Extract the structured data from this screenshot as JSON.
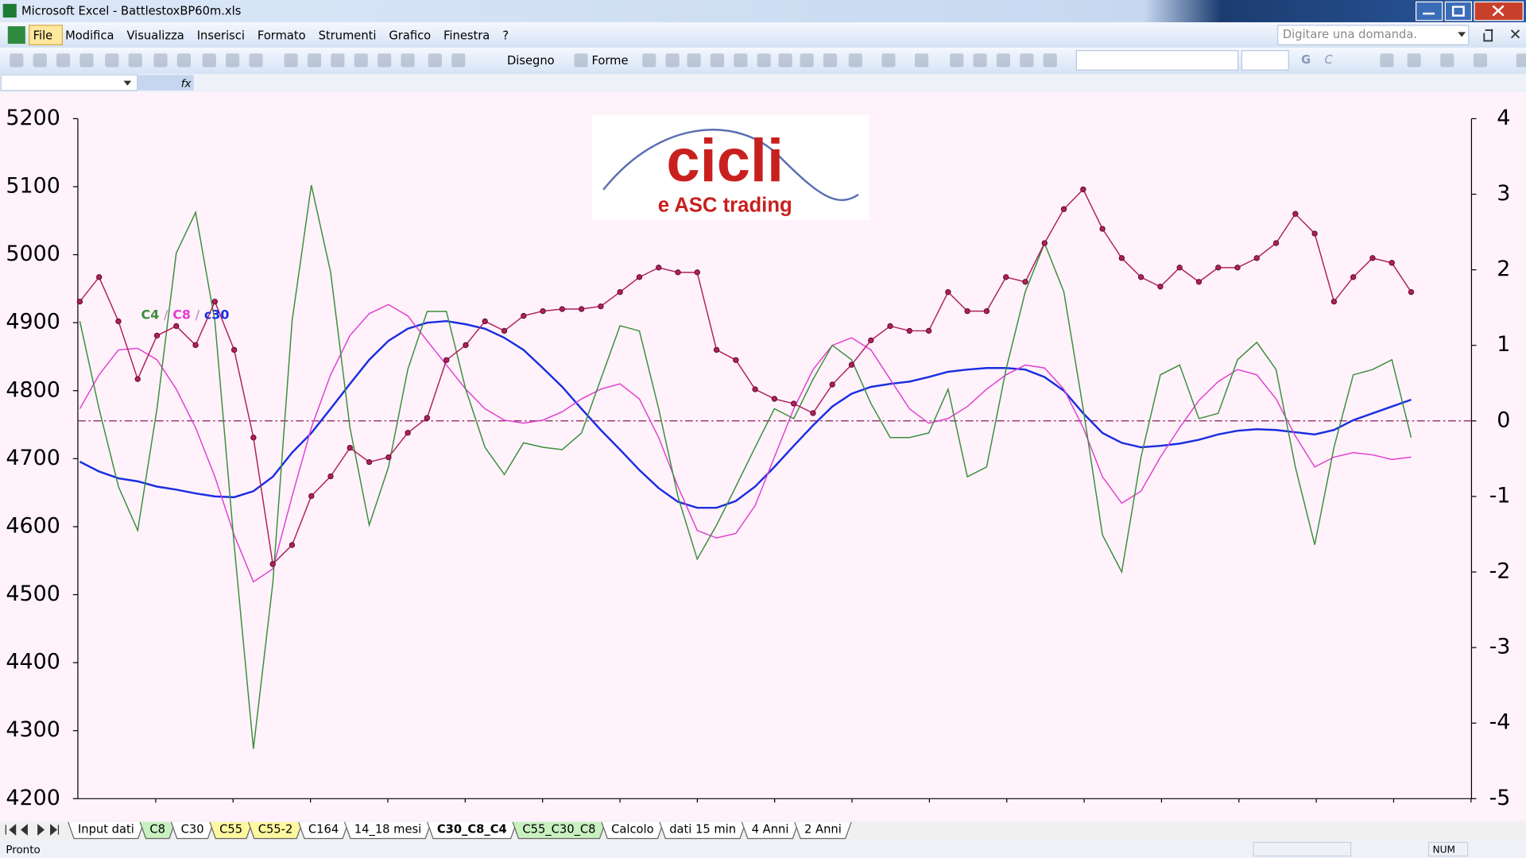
{
  "window": {
    "title": "Microsoft Excel - BattlestoxBP60m.xls"
  },
  "menu": [
    "File",
    "Modifica",
    "Visualizza",
    "Inserisci",
    "Formato",
    "Strumenti",
    "Grafico",
    "Finestra",
    "?"
  ],
  "search_box": "Digitare una domanda.",
  "toolbar": {
    "drawing": "Disegno",
    "shapes": "Forme",
    "bold": "G",
    "italic": "C"
  },
  "chart_data": {
    "type": "line",
    "annotations": [
      "cicli",
      "e ASC trading"
    ],
    "legend_separator": " / ",
    "ylim": [
      4200,
      5200
    ],
    "yticks": [
      4200,
      4300,
      4400,
      4500,
      4600,
      4700,
      4800,
      4900,
      5000,
      5100,
      5200
    ],
    "y2lim": [
      -5,
      4
    ],
    "y2ticks": [
      -5,
      -4,
      -3,
      -2,
      -1,
      0,
      1,
      2,
      3,
      4
    ],
    "reference_line": {
      "axis": "y2",
      "value": 0,
      "color": "#8b1a5c"
    },
    "background": "#fff2fb",
    "series": [
      {
        "color": "#b0205a",
        "markers": true,
        "values": [
          4931,
          4967,
          4902,
          4817,
          4881,
          4895,
          4867,
          4931,
          4860,
          4731,
          4545,
          4573,
          4645,
          4674,
          4716,
          4695,
          4702,
          4738,
          4760,
          4845,
          4867,
          4902,
          4888,
          4910,
          4917,
          4920,
          4920,
          4924,
          4945,
          4967,
          4981,
          4974,
          4974,
          4860,
          4845,
          4802,
          4788,
          4781,
          4767,
          4809,
          4838,
          4874,
          4895,
          4888,
          4888,
          4945,
          4917,
          4917,
          4967,
          4960,
          5017,
          5067,
          5096,
          5038,
          4995,
          4967,
          4953,
          4981,
          4960,
          4981,
          4981,
          4995,
          5017,
          5060,
          5031,
          4931,
          4967,
          4995,
          4988,
          4945
        ]
      },
      {
        "name": "C4",
        "color": "#3a8f3a",
        "axis": "y2",
        "values": [
          1.32,
          0.16,
          -0.87,
          -1.45,
          0.16,
          2.22,
          2.76,
          1.32,
          -1.64,
          -4.34,
          -2.15,
          1.32,
          3.12,
          1.97,
          -0.09,
          -1.38,
          -0.61,
          0.68,
          1.45,
          1.45,
          0.42,
          -0.35,
          -0.71,
          -0.29,
          -0.35,
          -0.38,
          -0.16,
          0.55,
          1.26,
          1.19,
          0.16,
          -1.0,
          -1.83,
          -1.38,
          -0.87,
          -0.35,
          0.16,
          0.03,
          0.55,
          1.0,
          0.81,
          0.23,
          -0.22,
          -0.22,
          -0.16,
          0.42,
          -0.74,
          -0.61,
          0.68,
          1.71,
          2.35,
          1.71,
          0.16,
          -1.51,
          -2.0,
          -0.48,
          0.61,
          0.74,
          0.03,
          0.1,
          0.81,
          1.04,
          0.68,
          -0.61,
          -1.64,
          -0.35,
          0.61,
          0.68,
          0.81,
          -0.22
        ]
      },
      {
        "name": "C8",
        "color": "#e040d0",
        "axis": "y2",
        "values": [
          0.16,
          0.61,
          0.94,
          0.96,
          0.81,
          0.42,
          -0.09,
          -0.74,
          -1.51,
          -2.13,
          -1.96,
          -1.0,
          -0.09,
          0.61,
          1.13,
          1.42,
          1.54,
          1.39,
          1.06,
          0.74,
          0.42,
          0.16,
          0.01,
          -0.03,
          0.01,
          0.12,
          0.29,
          0.42,
          0.49,
          0.29,
          -0.22,
          -0.87,
          -1.45,
          -1.55,
          -1.49,
          -1.12,
          -0.48,
          0.16,
          0.68,
          1.0,
          1.1,
          0.94,
          0.55,
          0.16,
          -0.03,
          0.03,
          0.19,
          0.42,
          0.61,
          0.74,
          0.7,
          0.42,
          -0.09,
          -0.74,
          -1.09,
          -0.93,
          -0.48,
          -0.09,
          0.27,
          0.52,
          0.68,
          0.61,
          0.29,
          -0.2,
          -0.61,
          -0.48,
          -0.42,
          -0.45,
          -0.51,
          -0.48
        ]
      },
      {
        "name": "c30",
        "color": "#1a2ee0",
        "axis": "y2",
        "values": [
          -0.54,
          -0.67,
          -0.76,
          -0.8,
          -0.87,
          -0.91,
          -0.96,
          -1.0,
          -1.01,
          -0.93,
          -0.74,
          -0.42,
          -0.16,
          0.16,
          0.49,
          0.81,
          1.06,
          1.22,
          1.3,
          1.32,
          1.28,
          1.22,
          1.1,
          0.94,
          0.7,
          0.45,
          0.16,
          -0.12,
          -0.38,
          -0.65,
          -0.89,
          -1.07,
          -1.15,
          -1.15,
          -1.06,
          -0.87,
          -0.61,
          -0.33,
          -0.06,
          0.19,
          0.36,
          0.45,
          0.49,
          0.52,
          0.58,
          0.65,
          0.68,
          0.7,
          0.7,
          0.68,
          0.58,
          0.4,
          0.1,
          -0.16,
          -0.29,
          -0.35,
          -0.33,
          -0.3,
          -0.25,
          -0.18,
          -0.13,
          -0.11,
          -0.12,
          -0.15,
          -0.18,
          -0.12,
          0.01,
          0.1,
          0.19,
          0.28
        ]
      }
    ]
  },
  "sheet_tabs": [
    {
      "label": "Input dati",
      "color": "#ffffff"
    },
    {
      "label": "C8",
      "color": "#c8f0c0"
    },
    {
      "label": "C30",
      "color": "#ffffff"
    },
    {
      "label": "C55",
      "color": "#fff8a0"
    },
    {
      "label": "C55-2",
      "color": "#fff8a0"
    },
    {
      "label": "C164",
      "color": "#ffffff"
    },
    {
      "label": "14_18 mesi",
      "color": "#ffffff"
    },
    {
      "label": "C30_C8_C4",
      "color": "#ffffff"
    },
    {
      "label": "C55_C30_C8",
      "color": "#c8f0c0"
    },
    {
      "label": "Calcolo",
      "color": "#ffffff"
    },
    {
      "label": "dati 15 min",
      "color": "#ffffff"
    },
    {
      "label": "4 Anni",
      "color": "#ffffff"
    },
    {
      "label": "2 Anni",
      "color": "#ffffff"
    }
  ],
  "active_tab": 7,
  "status": {
    "left": "Pronto",
    "num": "NUM"
  }
}
